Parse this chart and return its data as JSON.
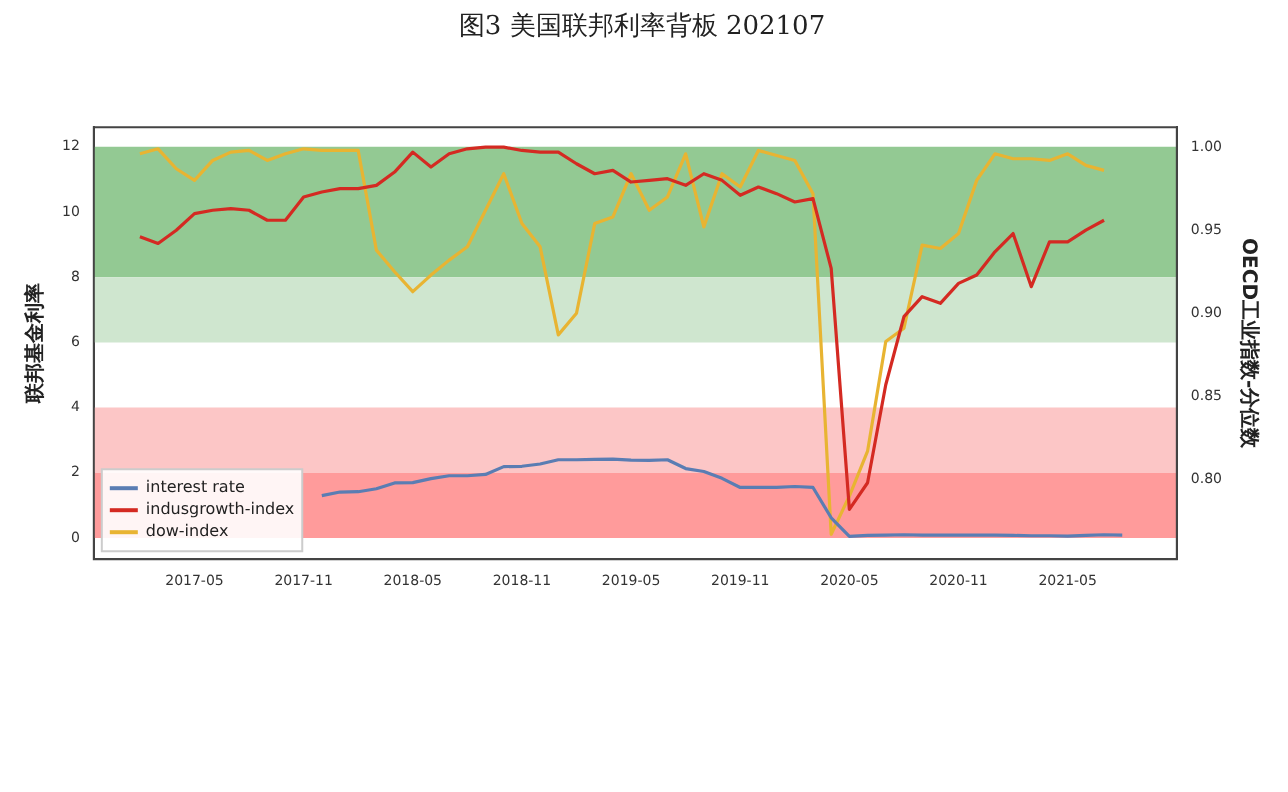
{
  "chart_data": {
    "type": "line",
    "title": "图3 美国联邦利率背板 202107",
    "ylabel": "联邦基金利率",
    "y2label": "OECD工业指数-分位数",
    "x": [
      "2017-02",
      "2017-03",
      "2017-04",
      "2017-05",
      "2017-06",
      "2017-07",
      "2017-08",
      "2017-09",
      "2017-10",
      "2017-11",
      "2017-12",
      "2018-01",
      "2018-02",
      "2018-03",
      "2018-04",
      "2018-05",
      "2018-06",
      "2018-07",
      "2018-08",
      "2018-09",
      "2018-10",
      "2018-11",
      "2018-12",
      "2019-01",
      "2019-02",
      "2019-03",
      "2019-04",
      "2019-05",
      "2019-06",
      "2019-07",
      "2019-08",
      "2019-09",
      "2019-10",
      "2019-11",
      "2019-12",
      "2020-01",
      "2020-02",
      "2020-03",
      "2020-04",
      "2020-05",
      "2020-06",
      "2020-07",
      "2020-08",
      "2020-09",
      "2020-10",
      "2020-11",
      "2020-12",
      "2021-01",
      "2021-02",
      "2021-03",
      "2021-04",
      "2021-05",
      "2021-06",
      "2021-07",
      "2021-08"
    ],
    "series": [
      {
        "name": "interest rate",
        "color": "#5a7db3",
        "values": [
          null,
          null,
          null,
          null,
          null,
          null,
          null,
          null,
          null,
          null,
          1.3,
          1.41,
          1.42,
          1.51,
          1.69,
          1.7,
          1.82,
          1.91,
          1.91,
          1.95,
          2.19,
          2.2,
          2.27,
          2.4,
          2.4,
          2.41,
          2.42,
          2.39,
          2.38,
          2.4,
          2.13,
          2.04,
          1.83,
          1.55,
          1.55,
          1.55,
          1.58,
          1.55,
          0.62,
          0.05,
          0.08,
          0.09,
          0.1,
          0.09,
          0.09,
          0.09,
          0.09,
          0.09,
          0.08,
          0.07,
          0.07,
          0.06,
          0.08,
          0.1,
          0.09
        ]
      },
      {
        "name": "indusgrowth-index",
        "color": "#d42a22",
        "axis": "y2",
        "values": [
          0.946,
          0.942,
          0.95,
          0.96,
          0.962,
          0.963,
          0.962,
          0.956,
          0.956,
          0.97,
          0.973,
          0.975,
          0.975,
          0.977,
          0.985,
          0.997,
          0.988,
          0.996,
          0.999,
          1.0,
          1.0,
          0.998,
          0.997,
          0.997,
          0.99,
          0.984,
          0.986,
          0.979,
          0.98,
          0.981,
          0.977,
          0.984,
          0.98,
          0.971,
          0.976,
          0.972,
          0.967,
          0.969,
          0.927,
          0.782,
          0.798,
          0.857,
          0.898,
          0.91,
          0.906,
          0.918,
          0.923,
          0.937,
          0.948,
          0.916,
          0.943,
          0.943,
          0.95,
          0.956,
          null
        ]
      },
      {
        "name": "dow-index",
        "color": "#e8b432",
        "axis": "y2",
        "values": [
          0.996,
          0.999,
          0.987,
          0.98,
          0.992,
          0.997,
          0.998,
          0.992,
          0.996,
          0.999,
          0.998,
          0.998,
          0.998,
          0.938,
          0.925,
          0.913,
          0.923,
          0.932,
          0.94,
          0.962,
          0.984,
          0.954,
          0.94,
          0.887,
          0.9,
          0.954,
          0.958,
          0.984,
          0.962,
          0.97,
          0.996,
          0.952,
          0.984,
          0.976,
          0.998,
          0.995,
          0.992,
          0.972,
          0.767,
          0.79,
          0.817,
          0.883,
          0.891,
          0.941,
          0.939,
          0.948,
          0.98,
          0.996,
          0.993,
          0.993,
          0.992,
          0.996,
          0.989,
          0.986,
          null
        ]
      }
    ],
    "xlim": [
      "2016-11-15",
      "2021-11-01"
    ],
    "xticks": [
      "2017-05",
      "2017-11",
      "2018-05",
      "2018-11",
      "2019-05",
      "2019-11",
      "2020-05",
      "2020-11",
      "2021-05"
    ],
    "ylim": [
      -0.65,
      12.6
    ],
    "yticks": [
      0,
      2,
      4,
      6,
      8,
      10,
      12
    ],
    "y2lim": [
      0.752,
      1.012
    ],
    "y2ticks": [
      {
        "value": 0.8,
        "label": "0.80"
      },
      {
        "value": 0.85,
        "label": "0.85"
      },
      {
        "value": 0.9,
        "label": "0.90"
      },
      {
        "value": 0.95,
        "label": "0.95"
      },
      {
        "value": 1,
        "label": "1.00"
      }
    ],
    "bands": [
      {
        "axis": "y",
        "from": 8,
        "to": 12,
        "color": "#93c993"
      },
      {
        "axis": "y",
        "from": 6,
        "to": 8,
        "color": "#cfe6cf"
      },
      {
        "axis": "y",
        "from": 2,
        "to": 4,
        "color": "#fcc6c6"
      },
      {
        "axis": "y",
        "from": 0,
        "to": 2,
        "color": "#ff9b9b"
      }
    ],
    "grid": false,
    "legend": "bottom left",
    "marker": "none",
    "line_style": "solid"
  }
}
